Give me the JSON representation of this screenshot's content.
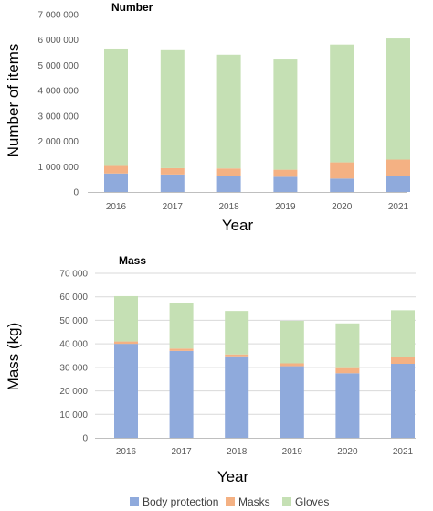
{
  "chart_data": [
    {
      "type": "bar",
      "stacked": true,
      "title": "Number",
      "xlabel": "Year",
      "ylabel": "Number of items",
      "categories": [
        "2016",
        "2017",
        "2018",
        "2019",
        "2020",
        "2021"
      ],
      "ylim": [
        0,
        7000000
      ],
      "yticks": [
        0,
        1000000,
        2000000,
        3000000,
        4000000,
        5000000,
        6000000,
        7000000
      ],
      "ytick_labels": [
        "0",
        "1 000 000",
        "2 000 000",
        "3 000 000",
        "4 000 000",
        "5 000 000",
        "6 000 000",
        "7 000 000"
      ],
      "grid": false,
      "series": [
        {
          "name": "Body protection",
          "values": [
            730000,
            690000,
            640000,
            600000,
            530000,
            620000
          ]
        },
        {
          "name": "Masks",
          "values": [
            300000,
            250000,
            290000,
            280000,
            640000,
            660000
          ]
        },
        {
          "name": "Gloves",
          "values": [
            4600000,
            4660000,
            4490000,
            4350000,
            4650000,
            4780000
          ]
        }
      ]
    },
    {
      "type": "bar",
      "stacked": true,
      "title": "Mass",
      "xlabel": "Year",
      "ylabel": "Mass (kg)",
      "categories": [
        "2016",
        "2017",
        "2018",
        "2019",
        "2020",
        "2021"
      ],
      "ylim": [
        0,
        70000
      ],
      "yticks": [
        0,
        10000,
        20000,
        30000,
        40000,
        50000,
        60000,
        70000
      ],
      "ytick_labels": [
        "0",
        "10 000",
        "20 000",
        "30 000",
        "40 000",
        "50 000",
        "60 000",
        "70 000"
      ],
      "grid": true,
      "series": [
        {
          "name": "Body protection",
          "values": [
            40000,
            37000,
            34700,
            30500,
            27500,
            31500
          ]
        },
        {
          "name": "Masks",
          "values": [
            1000,
            1000,
            800,
            1200,
            2200,
            2800
          ]
        },
        {
          "name": "Gloves",
          "values": [
            19300,
            19500,
            18500,
            18100,
            19000,
            20000
          ]
        }
      ]
    }
  ],
  "legend": {
    "placement": "bottom",
    "items": [
      "Body protection",
      "Masks",
      "Gloves"
    ]
  },
  "colors": {
    "Body protection": "#8faadc",
    "Masks": "#f4b183",
    "Gloves": "#c5e0b4",
    "axis": "#bfbfbf",
    "grid": "#d9d9d9"
  }
}
